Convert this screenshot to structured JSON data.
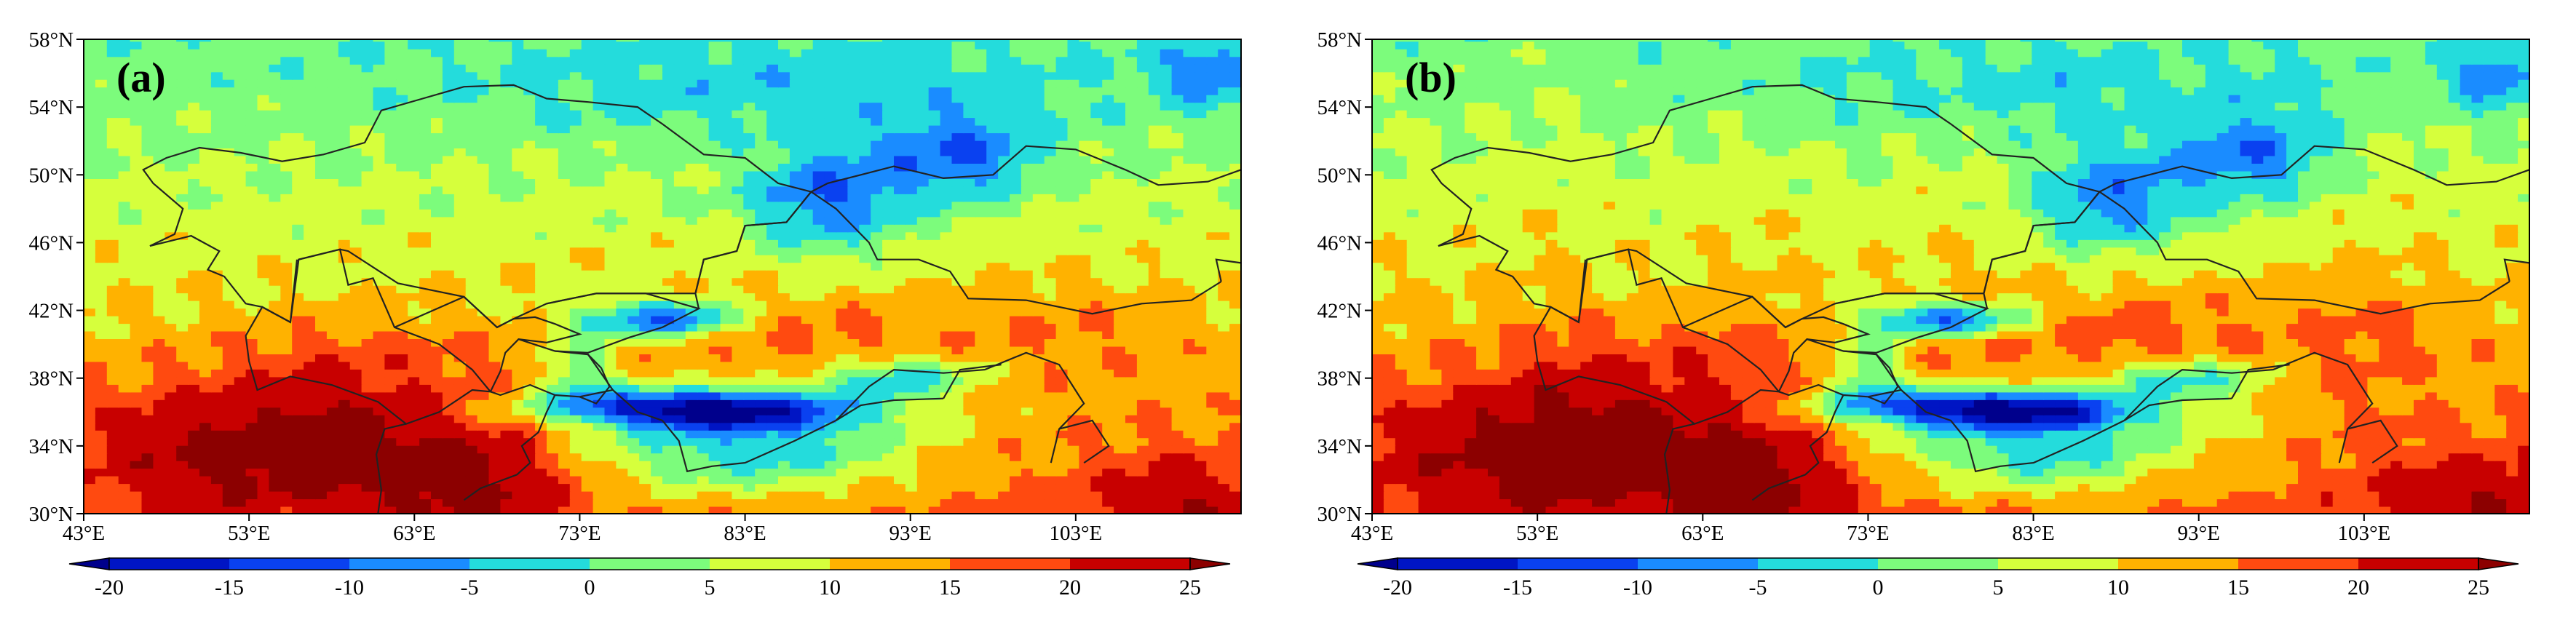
{
  "panels": [
    {
      "label": "(a)"
    },
    {
      "label": "(b)"
    }
  ],
  "lat_ticks": [
    "30°N",
    "34°N",
    "38°N",
    "42°N",
    "46°N",
    "50°N",
    "54°N",
    "58°N"
  ],
  "lon_ticks": [
    "43°E",
    "53°E",
    "63°E",
    "73°E",
    "83°E",
    "93°E",
    "103°E"
  ],
  "colorbar": {
    "ticks": [
      "-20",
      "-15",
      "-10",
      "-5",
      "0",
      "5",
      "10",
      "15",
      "20",
      "25"
    ],
    "levels": [
      -20,
      -15,
      -10,
      -5,
      0,
      5,
      10,
      15,
      20,
      25
    ],
    "colors": [
      "#0015c4",
      "#0a41f0",
      "#1a8cff",
      "#24dcdc",
      "#7cfc7c",
      "#d6ff3c",
      "#ffb200",
      "#ff4a10",
      "#c80000",
      "#8c0000"
    ],
    "under_color": "#00008c"
  },
  "map_extent": {
    "lon": [
      43,
      113
    ],
    "lat": [
      30,
      58
    ]
  }
}
